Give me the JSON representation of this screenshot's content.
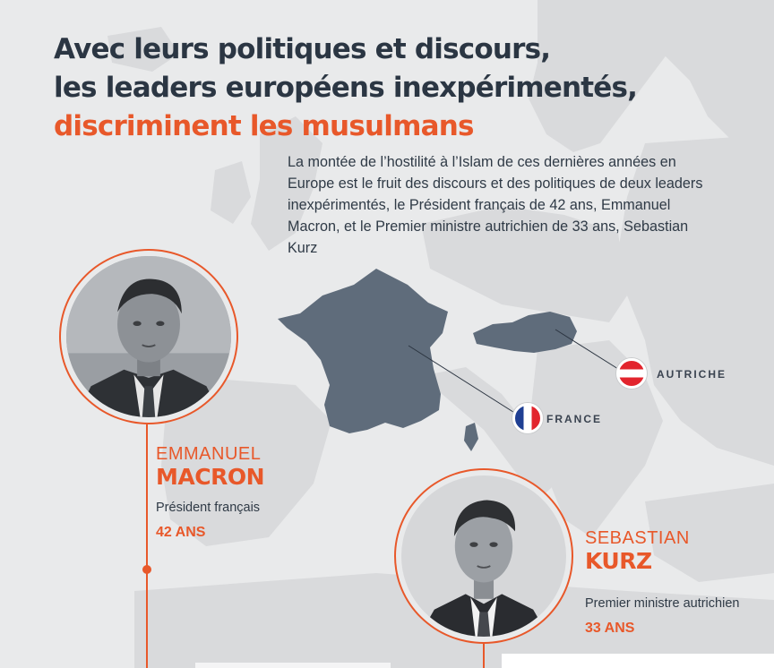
{
  "headline": {
    "line1": "Avec leurs politiques et discours,",
    "line2": "les leaders européens inexpérimentés,",
    "line3": "discriminent les musulmans"
  },
  "intro": "La montée de l’hostilité à l’Islam de ces dernières années en Europe est le fruit des discours et des politiques de deux leaders inexpérimentés, le Président français de 42 ans, Emmanuel Macron, et le Premier ministre autrichien de 33 ans, Sebastian Kurz",
  "countries": {
    "france": {
      "label": "FRANCE"
    },
    "austria": {
      "label": "AUTRICHE"
    }
  },
  "leaders": {
    "macron": {
      "first_name": "EMMANUEL",
      "last_name": "MACRON",
      "role": "Président français",
      "age": "42 ANS"
    },
    "kurz": {
      "first_name": "SEBASTIAN",
      "last_name": "KURZ",
      "role": "Premier ministre autrichien",
      "age": "33 ANS"
    }
  },
  "colors": {
    "accent": "#e8582a",
    "title": "#2b3643",
    "map_highlight": "#5f6c7b",
    "map_land": "#d9dadc",
    "background": "#e9eaeb"
  },
  "icons": [
    "france-flag-icon",
    "austria-flag-icon"
  ]
}
